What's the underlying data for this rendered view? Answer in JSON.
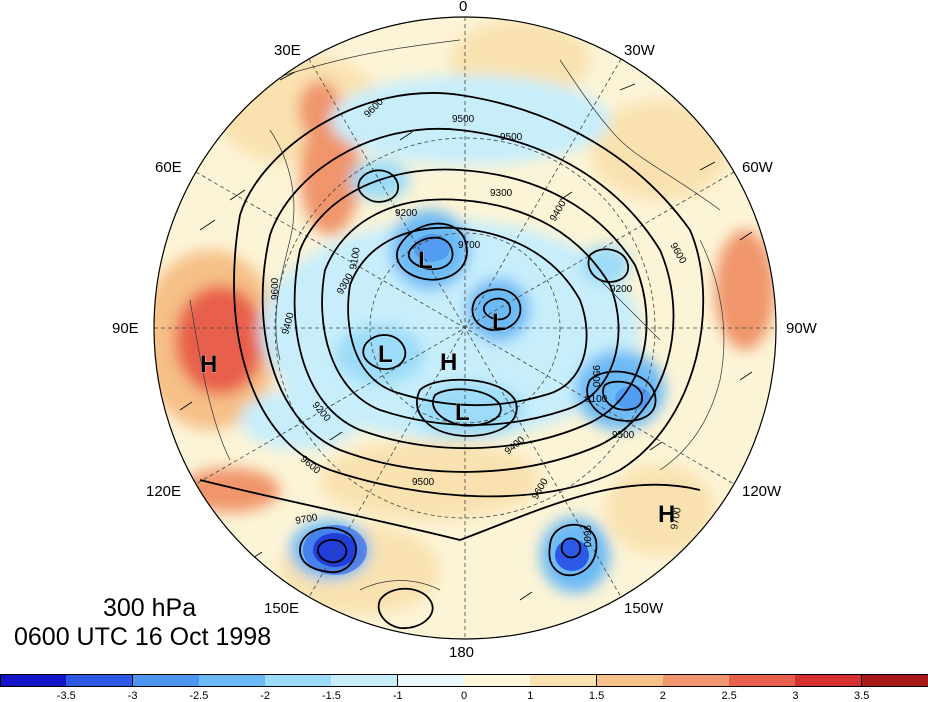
{
  "map": {
    "level": "300 hPa",
    "valid_time": "0600 UTC 16 Oct 1998",
    "longitude_labels": {
      "lon_0": "0",
      "lon_30w": "30W",
      "lon_60w": "60W",
      "lon_90w": "90W",
      "lon_120w": "120W",
      "lon_150w": "150W",
      "lon_180": "180",
      "lon_150e": "150E",
      "lon_120e": "120E",
      "lon_90e": "90E",
      "lon_60e": "60E",
      "lon_30e": "30E"
    },
    "contour_labels": [
      "9500",
      "9600",
      "9500",
      "9300",
      "9200",
      "9700",
      "9400",
      "9600",
      "9200",
      "9100",
      "9300",
      "9400",
      "9600",
      "9500",
      "9200",
      "9100",
      "9400",
      "9500",
      "9600",
      "9500",
      "9600",
      "9700",
      "9700",
      "9600"
    ],
    "pressure_centers": [
      "L",
      "L",
      "L",
      "L",
      "H",
      "H",
      "H"
    ]
  },
  "colorbar": {
    "tick_labels": [
      "-3.5",
      "-3",
      "-2.5",
      "-2",
      "-1.5",
      "-1",
      "0",
      "1",
      "1.5",
      "2",
      "2.5",
      "3",
      "3.5"
    ],
    "colors": [
      "#1414c8",
      "#2c5ae6",
      "#4c96f0",
      "#6cbaf5",
      "#9cdcf8",
      "#c8eefb",
      "#eaf8fc",
      "#fdf7dc",
      "#f9e2b0",
      "#f6c088",
      "#f0956c",
      "#e8604c",
      "#d53030",
      "#a81a1a"
    ]
  }
}
